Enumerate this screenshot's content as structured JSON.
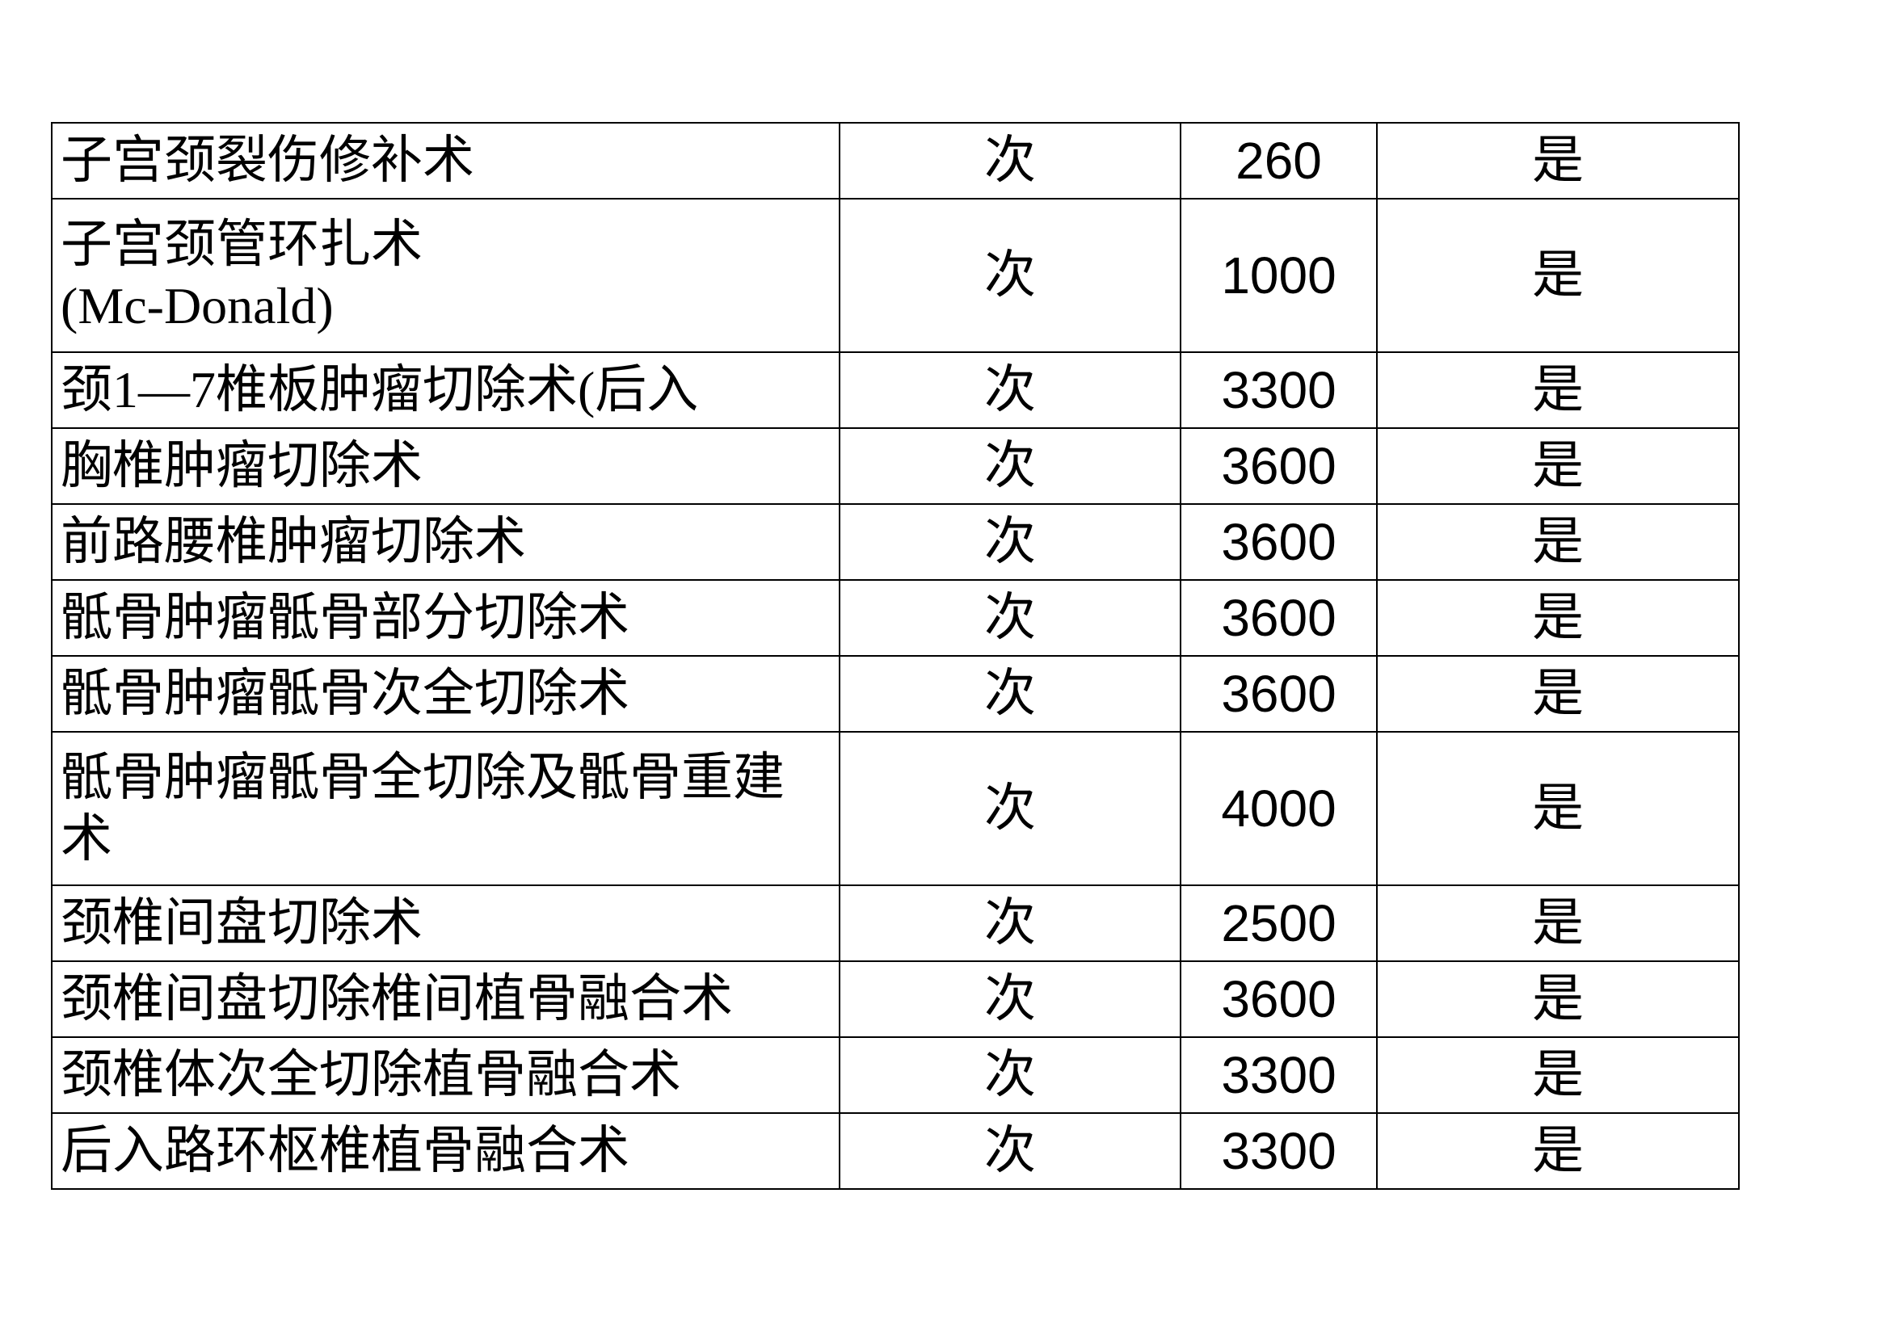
{
  "table": {
    "rows": [
      {
        "name": "子宫颈裂伤修补术",
        "unit": "次",
        "price": "260",
        "flag": "是"
      },
      {
        "name": "子宫颈管环扎术\n(Mc-Donald)",
        "unit": "次",
        "price": "1000",
        "flag": "是"
      },
      {
        "name": "颈1—7椎板肿瘤切除术(后入",
        "unit": "次",
        "price": "3300",
        "flag": "是"
      },
      {
        "name": "胸椎肿瘤切除术",
        "unit": "次",
        "price": "3600",
        "flag": "是"
      },
      {
        "name": "前路腰椎肿瘤切除术",
        "unit": "次",
        "price": "3600",
        "flag": "是"
      },
      {
        "name": "骶骨肿瘤骶骨部分切除术",
        "unit": "次",
        "price": "3600",
        "flag": "是"
      },
      {
        "name": "骶骨肿瘤骶骨次全切除术",
        "unit": "次",
        "price": "3600",
        "flag": "是"
      },
      {
        "name": "骶骨肿瘤骶骨全切除及骶骨重建术",
        "unit": "次",
        "price": "4000",
        "flag": "是"
      },
      {
        "name": "颈椎间盘切除术",
        "unit": "次",
        "price": "2500",
        "flag": "是"
      },
      {
        "name": "颈椎间盘切除椎间植骨融合术",
        "unit": "次",
        "price": "3600",
        "flag": "是"
      },
      {
        "name": "颈椎体次全切除植骨融合术",
        "unit": "次",
        "price": "3300",
        "flag": "是"
      },
      {
        "name": "后入路环枢椎植骨融合术",
        "unit": "次",
        "price": "3300",
        "flag": "是"
      }
    ]
  }
}
